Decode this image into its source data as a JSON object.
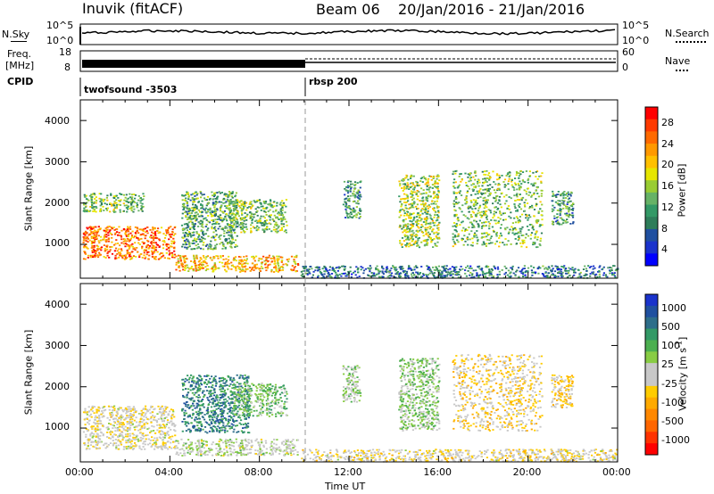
{
  "header": {
    "station": "Inuvik (fitACF)",
    "beam": "Beam 06",
    "date_range": "20/Jan/2016 - 21/Jan/2016"
  },
  "nsky_panel": {
    "left_label": "N.Sky",
    "right_label": "N.Search",
    "ticks_left": [
      "10^5",
      "10^0"
    ],
    "ticks_right": [
      "10^5",
      "10^0"
    ]
  },
  "freq_panel": {
    "left_label_1": "Freq.",
    "left_label_2": "[MHz]",
    "right_label": "Nave",
    "ticks_left": [
      "18",
      "8"
    ],
    "ticks_right": [
      "60",
      "0"
    ]
  },
  "cpid_panel": {
    "label": "CPID",
    "programs": [
      {
        "name": "twofsound -3503",
        "start_hour": 0
      },
      {
        "name": "rbsp 200",
        "start_hour": 10
      }
    ]
  },
  "power_panel": {
    "ylabel": "Slant Range [km]",
    "colorbar_label": "Power [dB]",
    "colorbar_ticks": [
      "28",
      "24",
      "20",
      "16",
      "12",
      "8",
      "4"
    ],
    "colorbar_colors": [
      "#ff0000",
      "#ff3a00",
      "#ff6a00",
      "#ff9900",
      "#ffc000",
      "#e6e600",
      "#99cc33",
      "#66b266",
      "#339966",
      "#2e7d5a",
      "#2050a0",
      "#1a33cc",
      "#0000ff"
    ]
  },
  "velocity_panel": {
    "ylabel": "Slant Range [km]",
    "colorbar_label": "Velocity [m s",
    "colorbar_label_sup": "-1",
    "colorbar_label_end": "]",
    "colorbar_ticks": [
      "1000",
      "500",
      "100",
      "25",
      "-25",
      "-100",
      "-500",
      "-1000"
    ],
    "colorbar_colors": [
      "#1a33cc",
      "#2050a0",
      "#2e6e8a",
      "#339966",
      "#4caf50",
      "#88cc44",
      "#c8c8c8",
      "#c8c8c8",
      "#ffcc00",
      "#ffaa00",
      "#ff8800",
      "#ff6600",
      "#ff3300",
      "#ff0000"
    ]
  },
  "x_axis": {
    "label": "Time UT",
    "ticks": [
      "00:00",
      "04:00",
      "08:00",
      "12:00",
      "16:00",
      "20:00",
      "00:00"
    ]
  },
  "chart_data": {
    "type": "heatmap",
    "title": "Inuvik (fitACF) Beam 06 20/Jan/2016 - 21/Jan/2016",
    "xlabel": "Time UT",
    "ylabel": "Slant Range [km]",
    "xlim_hours": [
      0,
      24
    ],
    "ylim_km": [
      180,
      4500
    ],
    "y_ticks": [
      1000,
      2000,
      3000,
      4000
    ],
    "power_db_range": [
      0,
      32
    ],
    "velocity_range": [
      -1000,
      1000
    ],
    "power_echo_regions": [
      {
        "t0": 0.1,
        "t1": 4.2,
        "r0": 650,
        "r1": 1450,
        "power": 26
      },
      {
        "t0": 0.1,
        "t1": 2.8,
        "r0": 1800,
        "r1": 2250,
        "power": 14
      },
      {
        "t0": 4.2,
        "t1": 9.7,
        "r0": 350,
        "r1": 750,
        "power": 22
      },
      {
        "t0": 4.5,
        "t1": 7.0,
        "r0": 900,
        "r1": 2300,
        "power": 12
      },
      {
        "t0": 6.5,
        "t1": 9.2,
        "r0": 1300,
        "r1": 2100,
        "power": 14
      },
      {
        "t0": 11.7,
        "t1": 12.5,
        "r0": 1650,
        "r1": 2550,
        "power": 10
      },
      {
        "t0": 14.2,
        "t1": 16.0,
        "r0": 950,
        "r1": 2700,
        "power": 16
      },
      {
        "t0": 16.6,
        "t1": 20.6,
        "r0": 950,
        "r1": 2800,
        "power": 14
      },
      {
        "t0": 21.0,
        "t1": 22.0,
        "r0": 1500,
        "r1": 2300,
        "power": 10
      },
      {
        "t0": 9.8,
        "t1": 24.0,
        "r0": 200,
        "r1": 500,
        "power": 8
      }
    ],
    "velocity_echo_regions": [
      {
        "t0": 0.1,
        "t1": 4.2,
        "r0": 500,
        "r1": 1550,
        "velocity": -60
      },
      {
        "t0": 4.2,
        "t1": 9.7,
        "r0": 350,
        "r1": 750,
        "velocity": 80
      },
      {
        "t0": 4.5,
        "t1": 7.5,
        "r0": 900,
        "r1": 2300,
        "velocity": 600
      },
      {
        "t0": 6.8,
        "t1": 9.2,
        "r0": 1300,
        "r1": 2100,
        "velocity": 300
      },
      {
        "t0": 11.7,
        "t1": 12.5,
        "r0": 1650,
        "r1": 2550,
        "velocity": 150
      },
      {
        "t0": 14.2,
        "t1": 16.0,
        "r0": 950,
        "r1": 2700,
        "velocity": 200
      },
      {
        "t0": 16.6,
        "t1": 20.6,
        "r0": 950,
        "r1": 2800,
        "velocity": -150
      },
      {
        "t0": 21.0,
        "t1": 22.0,
        "r0": 1500,
        "r1": 2300,
        "velocity": -200
      },
      {
        "t0": 9.8,
        "t1": 24.0,
        "r0": 200,
        "r1": 500,
        "velocity": -80
      }
    ]
  }
}
